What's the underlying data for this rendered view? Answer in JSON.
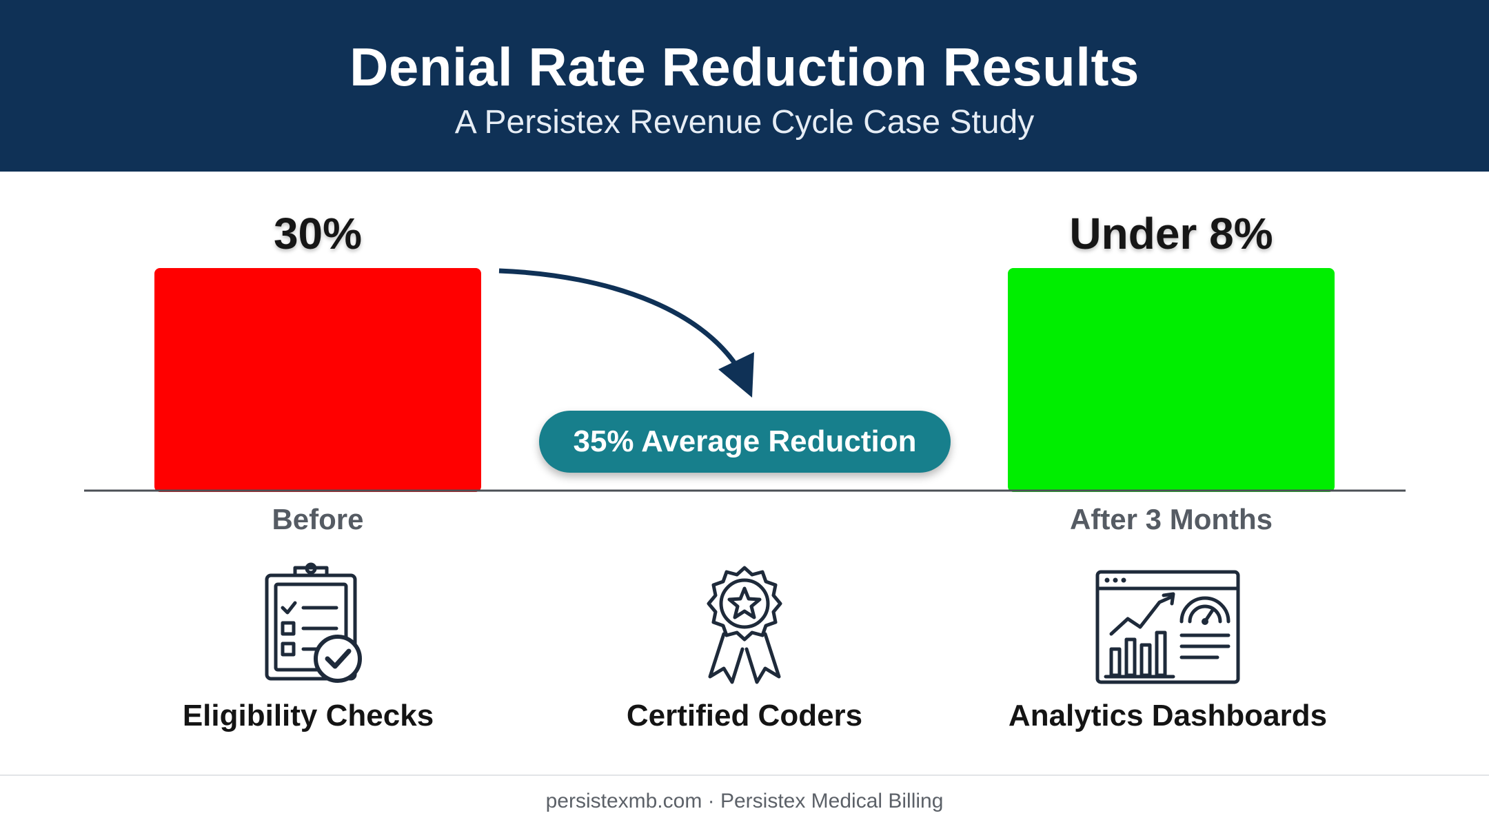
{
  "header": {
    "title": "Denial Rate Reduction Results",
    "subtitle": "A Persistex Revenue Cycle Case Study"
  },
  "chart_data": {
    "type": "bar",
    "categories": [
      "Before",
      "After 3 Months"
    ],
    "values": [
      30,
      8
    ],
    "data_labels": [
      "30%",
      "Under 8%"
    ],
    "colors": [
      "#ff0000",
      "#00ee00"
    ],
    "annotation": "35% Average Reduction",
    "grid": false,
    "legend": "none"
  },
  "features": [
    {
      "label": "Eligibility Checks",
      "icon": "clipboard-check-icon"
    },
    {
      "label": "Certified Coders",
      "icon": "award-ribbon-icon"
    },
    {
      "label": "Analytics Dashboards",
      "icon": "analytics-dashboard-icon"
    }
  ],
  "footer": {
    "text": "persistexmb.com · Persistex Medical Billing"
  },
  "colors": {
    "header_bg": "#0f3156",
    "accent": "#177f8c",
    "icon_stroke": "#1e2a3a"
  }
}
